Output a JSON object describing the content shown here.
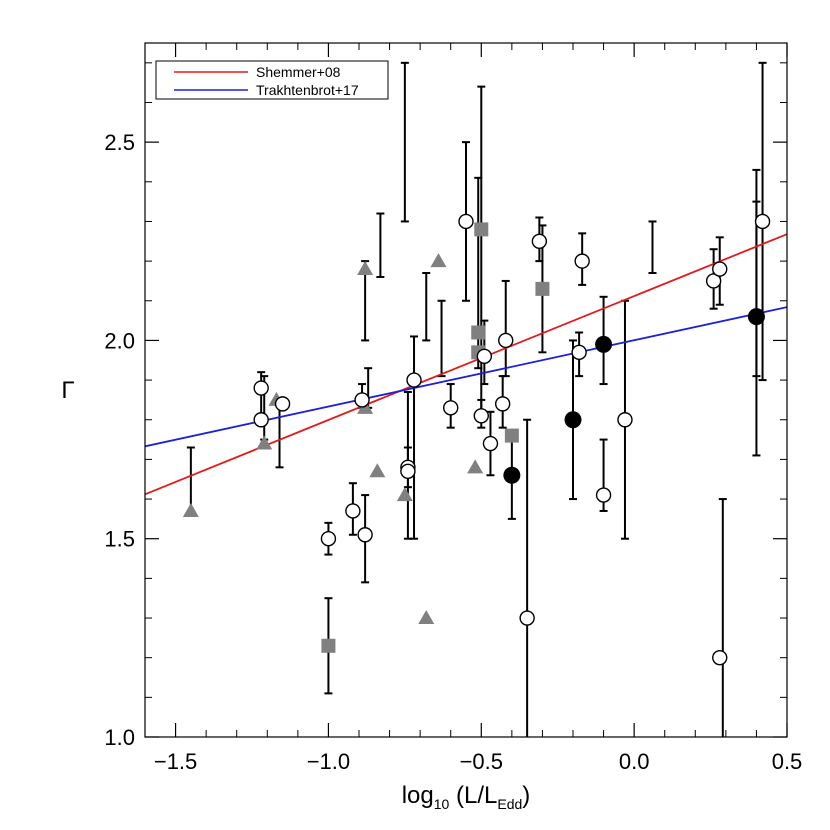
{
  "chart_data": {
    "type": "scatter",
    "xlabel": "log₁₀ (L/L_Edd)",
    "xlabel_parts": {
      "prefix": "log",
      "sub1": "10",
      "middle": " (L/L",
      "sub2": "Edd",
      "suffix": ")"
    },
    "ylabel": "Γ",
    "xlim": [
      -1.6,
      0.5
    ],
    "ylim": [
      1.0,
      2.75
    ],
    "xticks": [
      -1.5,
      -1.0,
      -0.5,
      0.0,
      0.5
    ],
    "xtick_labels": [
      "−1.5",
      "−1.0",
      "−0.5",
      "0.0",
      "0.5"
    ],
    "yticks": [
      1.0,
      1.5,
      2.0,
      2.5
    ],
    "ytick_labels": [
      "1.0",
      "1.5",
      "2.0",
      "2.5"
    ],
    "x_minor_step": 0.1,
    "y_minor_step": 0.1,
    "grid": false,
    "legend_position": "top-left",
    "lines": [
      {
        "name": "Shemmer+08",
        "color": "#e31a1c",
        "x": [
          -1.6,
          0.5
        ],
        "y": [
          1.612,
          2.268
        ]
      },
      {
        "name": "Trakhtenbrot+17",
        "color": "#1f1fd6",
        "x": [
          -1.6,
          0.5
        ],
        "y": [
          1.733,
          2.084
        ]
      }
    ],
    "errorbars": [
      {
        "x": -1.45,
        "ylo": 1.57,
        "yhi": 1.73
      },
      {
        "x": -1.22,
        "ylo": 1.8,
        "yhi": 1.92
      },
      {
        "x": -1.21,
        "ylo": 1.75,
        "yhi": 1.91
      },
      {
        "x": -1.16,
        "ylo": 1.68,
        "yhi": 1.85
      },
      {
        "x": -1.0,
        "ylo": 1.46,
        "yhi": 1.54
      },
      {
        "x": -1.0,
        "ylo": 1.11,
        "yhi": 1.35
      },
      {
        "x": -0.92,
        "ylo": 1.51,
        "yhi": 1.64
      },
      {
        "x": -0.89,
        "ylo": 1.83,
        "yhi": 1.89
      },
      {
        "x": -0.88,
        "ylo": 1.39,
        "yhi": 1.61
      },
      {
        "x": -0.88,
        "ylo": 2.0,
        "yhi": 2.2
      },
      {
        "x": -0.87,
        "ylo": 1.83,
        "yhi": 1.93
      },
      {
        "x": -0.83,
        "ylo": 2.16,
        "yhi": 2.32
      },
      {
        "x": -0.75,
        "ylo": 2.3,
        "yhi": 2.7
      },
      {
        "x": -0.74,
        "ylo": 1.63,
        "yhi": 1.73
      },
      {
        "x": -0.74,
        "ylo": 1.5,
        "yhi": 1.87
      },
      {
        "x": -0.72,
        "ylo": 1.5,
        "yhi": 2.01
      },
      {
        "x": -0.68,
        "ylo": 2.0,
        "yhi": 2.17
      },
      {
        "x": -0.63,
        "ylo": 1.91,
        "yhi": 2.1
      },
      {
        "x": -0.6,
        "ylo": 1.78,
        "yhi": 1.89
      },
      {
        "x": -0.55,
        "ylo": 2.1,
        "yhi": 2.5
      },
      {
        "x": -0.51,
        "ylo": 1.93,
        "yhi": 2.41
      },
      {
        "x": -0.5,
        "ylo": 1.78,
        "yhi": 1.85
      },
      {
        "x": -0.5,
        "ylo": 1.82,
        "yhi": 2.64
      },
      {
        "x": -0.49,
        "ylo": 1.89,
        "yhi": 2.05
      },
      {
        "x": -0.47,
        "ylo": 1.66,
        "yhi": 1.82
      },
      {
        "x": -0.43,
        "ylo": 1.78,
        "yhi": 1.91
      },
      {
        "x": -0.42,
        "ylo": 1.91,
        "yhi": 2.15
      },
      {
        "x": -0.4,
        "ylo": 1.55,
        "yhi": 1.77
      },
      {
        "x": -0.35,
        "ylo": 1.0,
        "yhi": 1.8
      },
      {
        "x": -0.31,
        "ylo": 2.2,
        "yhi": 2.31
      },
      {
        "x": -0.3,
        "ylo": 1.97,
        "yhi": 2.29
      },
      {
        "x": -0.2,
        "ylo": 1.6,
        "yhi": 2.0
      },
      {
        "x": -0.18,
        "ylo": 1.91,
        "yhi": 2.02
      },
      {
        "x": -0.17,
        "ylo": 2.14,
        "yhi": 2.27
      },
      {
        "x": -0.1,
        "ylo": 1.57,
        "yhi": 1.75
      },
      {
        "x": -0.1,
        "ylo": 1.89,
        "yhi": 2.11
      },
      {
        "x": -0.03,
        "ylo": 1.5,
        "yhi": 2.1
      },
      {
        "x": 0.06,
        "ylo": 2.17,
        "yhi": 2.3
      },
      {
        "x": 0.26,
        "ylo": 2.08,
        "yhi": 2.23
      },
      {
        "x": 0.28,
        "ylo": 2.09,
        "yhi": 2.26
      },
      {
        "x": 0.29,
        "ylo": 1.0,
        "yhi": 1.6
      },
      {
        "x": 0.4,
        "ylo": 1.71,
        "yhi": 2.43
      },
      {
        "x": 0.4,
        "ylo": 1.91,
        "yhi": 2.35
      },
      {
        "x": 0.42,
        "ylo": 1.9,
        "yhi": 2.7
      }
    ],
    "points_open_circle": [
      {
        "x": -1.22,
        "y": 1.88
      },
      {
        "x": -1.22,
        "y": 1.8
      },
      {
        "x": -1.15,
        "y": 1.84
      },
      {
        "x": -1.0,
        "y": 1.5
      },
      {
        "x": -0.92,
        "y": 1.57
      },
      {
        "x": -0.89,
        "y": 1.85
      },
      {
        "x": -0.88,
        "y": 1.51
      },
      {
        "x": -0.74,
        "y": 1.68
      },
      {
        "x": -0.74,
        "y": 1.67
      },
      {
        "x": -0.72,
        "y": 1.9
      },
      {
        "x": -0.6,
        "y": 1.83
      },
      {
        "x": -0.55,
        "y": 2.3
      },
      {
        "x": -0.5,
        "y": 1.81
      },
      {
        "x": -0.49,
        "y": 1.96
      },
      {
        "x": -0.47,
        "y": 1.74
      },
      {
        "x": -0.43,
        "y": 1.84
      },
      {
        "x": -0.42,
        "y": 2.0
      },
      {
        "x": -0.35,
        "y": 1.3
      },
      {
        "x": -0.31,
        "y": 2.25
      },
      {
        "x": -0.18,
        "y": 1.97
      },
      {
        "x": -0.17,
        "y": 2.2
      },
      {
        "x": -0.1,
        "y": 1.61
      },
      {
        "x": -0.03,
        "y": 1.8
      },
      {
        "x": 0.26,
        "y": 2.15
      },
      {
        "x": 0.28,
        "y": 2.18
      },
      {
        "x": 0.28,
        "y": 1.2
      },
      {
        "x": 0.42,
        "y": 2.3
      }
    ],
    "points_filled_circle": [
      {
        "x": -0.4,
        "y": 1.66
      },
      {
        "x": -0.2,
        "y": 1.8
      },
      {
        "x": -0.1,
        "y": 1.99
      },
      {
        "x": 0.4,
        "y": 2.06
      }
    ],
    "points_gray_square": [
      {
        "x": -1.0,
        "y": 1.23
      },
      {
        "x": -0.5,
        "y": 2.28
      },
      {
        "x": -0.51,
        "y": 2.02
      },
      {
        "x": -0.51,
        "y": 1.97
      },
      {
        "x": -0.4,
        "y": 1.76
      },
      {
        "x": -0.3,
        "y": 2.13
      }
    ],
    "points_gray_triangle": [
      {
        "x": -1.45,
        "y": 1.57
      },
      {
        "x": -1.21,
        "y": 1.74
      },
      {
        "x": -1.17,
        "y": 1.85
      },
      {
        "x": -0.88,
        "y": 2.18
      },
      {
        "x": -0.88,
        "y": 1.83
      },
      {
        "x": -0.84,
        "y": 1.67
      },
      {
        "x": -0.75,
        "y": 1.61
      },
      {
        "x": -0.68,
        "y": 1.3
      },
      {
        "x": -0.64,
        "y": 2.2
      },
      {
        "x": -0.52,
        "y": 1.68
      }
    ],
    "marker_colors": {
      "open": "#000000",
      "filled": "#000000",
      "gray": "#808080"
    }
  }
}
